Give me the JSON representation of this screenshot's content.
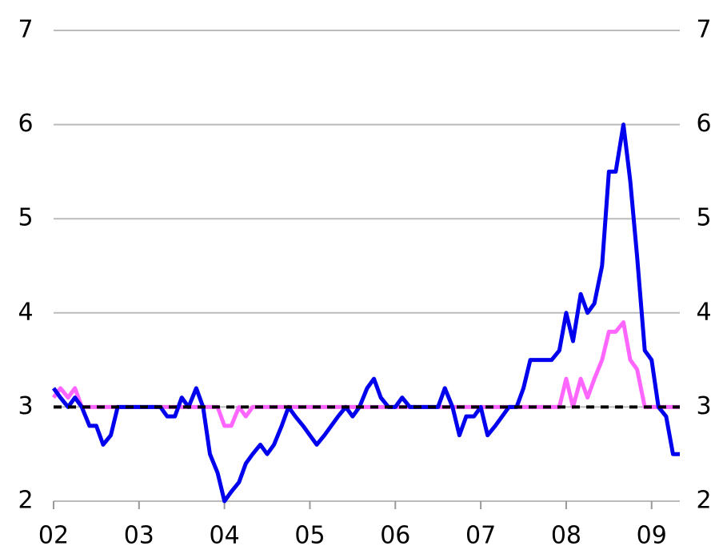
{
  "chart_data": {
    "type": "line",
    "x": [
      2.0,
      2.08,
      2.17,
      2.25,
      2.33,
      2.42,
      2.5,
      2.58,
      2.67,
      2.75,
      2.83,
      2.92,
      3.0,
      3.08,
      3.17,
      3.25,
      3.33,
      3.42,
      3.5,
      3.58,
      3.67,
      3.75,
      3.83,
      3.92,
      4.0,
      4.08,
      4.17,
      4.25,
      4.33,
      4.42,
      4.5,
      4.58,
      4.67,
      4.75,
      4.83,
      4.92,
      5.0,
      5.08,
      5.17,
      5.25,
      5.33,
      5.42,
      5.5,
      5.58,
      5.67,
      5.75,
      5.83,
      5.92,
      6.0,
      6.08,
      6.17,
      6.25,
      6.33,
      6.42,
      6.5,
      6.58,
      6.67,
      6.75,
      6.83,
      6.92,
      7.0,
      7.08,
      7.17,
      7.25,
      7.33,
      7.42,
      7.5,
      7.58,
      7.67,
      7.75,
      7.83,
      7.92,
      8.0,
      8.08,
      8.17,
      8.25,
      8.33,
      8.42,
      8.5,
      8.58,
      8.67,
      8.75,
      8.83,
      8.92,
      9.0,
      9.08,
      9.17,
      9.25,
      9.33
    ],
    "series": [
      {
        "color": "#ff66ff",
        "values": [
          3.1,
          3.2,
          3.1,
          3.2,
          3.0,
          3.0,
          3.0,
          3.0,
          3.0,
          3.0,
          3.0,
          3.0,
          3.0,
          3.0,
          3.0,
          3.0,
          3.0,
          3.0,
          3.0,
          3.0,
          3.0,
          3.0,
          3.0,
          3.0,
          2.8,
          2.8,
          3.0,
          2.9,
          3.0,
          3.0,
          3.0,
          3.0,
          3.0,
          3.0,
          3.0,
          3.0,
          3.0,
          3.0,
          3.0,
          3.0,
          3.0,
          3.0,
          3.0,
          3.0,
          3.0,
          3.0,
          3.0,
          3.0,
          3.0,
          3.0,
          3.0,
          3.0,
          3.0,
          3.0,
          3.0,
          3.0,
          3.0,
          3.0,
          3.0,
          3.0,
          3.0,
          3.0,
          3.0,
          3.0,
          3.0,
          3.0,
          3.0,
          3.0,
          3.0,
          3.0,
          3.0,
          3.0,
          3.3,
          3.0,
          3.3,
          3.1,
          3.3,
          3.5,
          3.8,
          3.8,
          3.9,
          3.5,
          3.4,
          3.0,
          3.0,
          3.0,
          3.0,
          3.0,
          3.0
        ]
      },
      {
        "color": "#0000ee",
        "values": [
          3.2,
          3.1,
          3.0,
          3.1,
          3.0,
          2.8,
          2.8,
          2.6,
          2.7,
          3.0,
          3.0,
          3.0,
          3.0,
          3.0,
          3.0,
          3.0,
          2.9,
          2.9,
          3.1,
          3.0,
          3.2,
          3.0,
          2.5,
          2.3,
          2.0,
          2.1,
          2.2,
          2.4,
          2.5,
          2.6,
          2.5,
          2.6,
          2.8,
          3.0,
          2.9,
          2.8,
          2.7,
          2.6,
          2.7,
          2.8,
          2.9,
          3.0,
          2.9,
          3.0,
          3.2,
          3.3,
          3.1,
          3.0,
          3.0,
          3.1,
          3.0,
          3.0,
          3.0,
          3.0,
          3.0,
          3.2,
          3.0,
          2.7,
          2.9,
          2.9,
          3.0,
          2.7,
          2.8,
          2.9,
          3.0,
          3.0,
          3.2,
          3.5,
          3.5,
          3.5,
          3.5,
          3.6,
          4.0,
          3.7,
          4.2,
          4.0,
          4.1,
          4.5,
          5.5,
          5.5,
          6.0,
          5.4,
          4.6,
          3.6,
          3.5,
          3.0,
          2.9,
          2.5,
          2.5
        ]
      }
    ],
    "hline": {
      "value": 3,
      "color": "#000000"
    },
    "xlim": [
      2,
      9.33
    ],
    "xticks": [
      {
        "value": 2,
        "label": "02"
      },
      {
        "value": 3,
        "label": "03"
      },
      {
        "value": 4,
        "label": "04"
      },
      {
        "value": 5,
        "label": "05"
      },
      {
        "value": 6,
        "label": "06"
      },
      {
        "value": 7,
        "label": "07"
      },
      {
        "value": 8,
        "label": "08"
      },
      {
        "value": 9,
        "label": "09"
      }
    ],
    "ylim": [
      2,
      7
    ],
    "yticks": [
      2,
      3,
      4,
      5,
      6,
      7
    ],
    "y2lim": [
      2,
      7
    ],
    "y2ticks": [
      2,
      3,
      4,
      5,
      6,
      7
    ],
    "grid": true
  }
}
